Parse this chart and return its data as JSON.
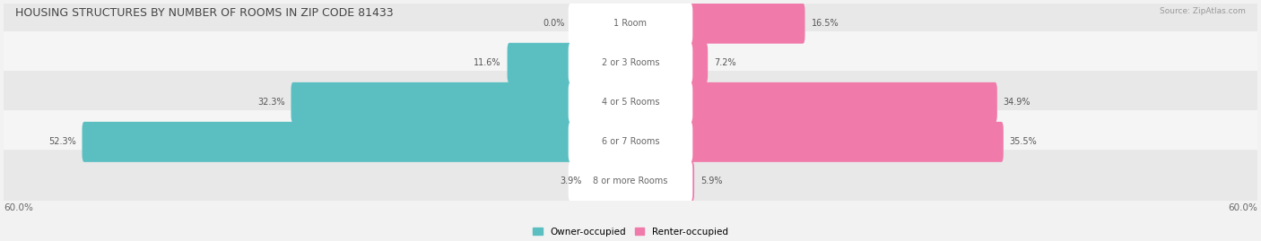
{
  "title": "HOUSING STRUCTURES BY NUMBER OF ROOMS IN ZIP CODE 81433",
  "source": "Source: ZipAtlas.com",
  "categories": [
    "1 Room",
    "2 or 3 Rooms",
    "4 or 5 Rooms",
    "6 or 7 Rooms",
    "8 or more Rooms"
  ],
  "owner_values": [
    0.0,
    11.6,
    32.3,
    52.3,
    3.9
  ],
  "renter_values": [
    16.5,
    7.2,
    34.9,
    35.5,
    5.9
  ],
  "owner_color": "#5bbfc2",
  "renter_color": "#f07aaa",
  "owner_label": "Owner-occupied",
  "renter_label": "Renter-occupied",
  "axis_max": 60.0,
  "background_color": "#f2f2f2",
  "row_colors": [
    "#e8e8e8",
    "#f5f5f5",
    "#e8e8e8",
    "#f5f5f5",
    "#e8e8e8"
  ]
}
